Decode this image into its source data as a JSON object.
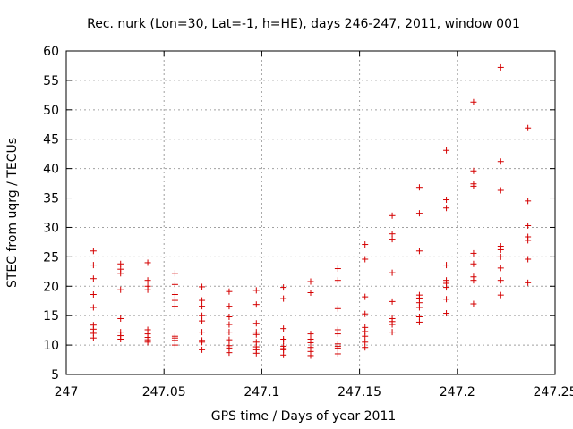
{
  "chart_data": {
    "type": "scatter",
    "title": "Rec. nurk (Lon=30, Lat=-1, h=HE), days 246-247, 2011, window 001",
    "xlabel": "GPS time / Days of year 2011",
    "ylabel": "STEC from uqrg / TECUs",
    "xlim": [
      247,
      247.25
    ],
    "ylim": [
      5,
      60
    ],
    "xticks": [
      247,
      247.05,
      247.1,
      247.15,
      247.2,
      247.25
    ],
    "xtick_labels": [
      "247",
      "247.05",
      "247.1",
      "247.15",
      "247.2",
      "247.25"
    ],
    "yticks": [
      5,
      10,
      15,
      20,
      25,
      30,
      35,
      40,
      45,
      50,
      55,
      60
    ],
    "ytick_labels": [
      "5",
      "10",
      "15",
      "20",
      "25",
      "30",
      "35",
      "40",
      "45",
      "50",
      "55",
      "60"
    ],
    "grid": true,
    "marker": "+",
    "color": "#d40000",
    "points": [
      [
        247.0139,
        26.0
      ],
      [
        247.0139,
        23.6
      ],
      [
        247.0139,
        21.3
      ],
      [
        247.0139,
        18.6
      ],
      [
        247.0139,
        16.4
      ],
      [
        247.0139,
        13.4
      ],
      [
        247.0139,
        12.7
      ],
      [
        247.0139,
        12.0
      ],
      [
        247.0139,
        11.2
      ],
      [
        247.0278,
        23.8
      ],
      [
        247.0278,
        22.9
      ],
      [
        247.0278,
        22.2
      ],
      [
        247.0278,
        19.4
      ],
      [
        247.0278,
        14.5
      ],
      [
        247.0278,
        12.2
      ],
      [
        247.0278,
        11.6
      ],
      [
        247.0278,
        11.0
      ],
      [
        247.0417,
        24.0
      ],
      [
        247.0417,
        21.0
      ],
      [
        247.0417,
        20.0
      ],
      [
        247.0417,
        19.4
      ],
      [
        247.0417,
        12.6
      ],
      [
        247.0417,
        11.9
      ],
      [
        247.0417,
        11.3
      ],
      [
        247.0417,
        10.9
      ],
      [
        247.0417,
        10.5
      ],
      [
        247.0556,
        22.2
      ],
      [
        247.0556,
        20.3
      ],
      [
        247.0556,
        18.6
      ],
      [
        247.0556,
        17.6
      ],
      [
        247.0556,
        16.6
      ],
      [
        247.0556,
        11.5
      ],
      [
        247.0556,
        11.2
      ],
      [
        247.0556,
        10.8
      ],
      [
        247.0556,
        10.0
      ],
      [
        247.0694,
        19.9
      ],
      [
        247.0694,
        17.6
      ],
      [
        247.0694,
        16.6
      ],
      [
        247.0694,
        15.0
      ],
      [
        247.0694,
        14.1
      ],
      [
        247.0694,
        12.2
      ],
      [
        247.0694,
        10.8
      ],
      [
        247.0694,
        10.5
      ],
      [
        247.0694,
        9.2
      ],
      [
        247.0833,
        19.1
      ],
      [
        247.0833,
        16.6
      ],
      [
        247.0833,
        14.8
      ],
      [
        247.0833,
        13.5
      ],
      [
        247.0833,
        12.2
      ],
      [
        247.0833,
        10.9
      ],
      [
        247.0833,
        9.9
      ],
      [
        247.0833,
        9.5
      ],
      [
        247.0833,
        8.7
      ],
      [
        247.0972,
        19.3
      ],
      [
        247.0972,
        16.9
      ],
      [
        247.0972,
        13.7
      ],
      [
        247.0972,
        12.2
      ],
      [
        247.0972,
        11.8
      ],
      [
        247.0972,
        10.5
      ],
      [
        247.0972,
        9.7
      ],
      [
        247.0972,
        9.2
      ],
      [
        247.0972,
        8.6
      ],
      [
        247.1111,
        19.8
      ],
      [
        247.1111,
        17.9
      ],
      [
        247.1111,
        12.8
      ],
      [
        247.1111,
        11.0
      ],
      [
        247.1111,
        10.7
      ],
      [
        247.1111,
        9.8
      ],
      [
        247.1111,
        9.4
      ],
      [
        247.1111,
        9.2
      ],
      [
        247.1111,
        8.3
      ],
      [
        247.125,
        20.8
      ],
      [
        247.125,
        18.9
      ],
      [
        247.125,
        11.9
      ],
      [
        247.125,
        11.0
      ],
      [
        247.125,
        10.4
      ],
      [
        247.125,
        9.6
      ],
      [
        247.125,
        8.9
      ],
      [
        247.125,
        8.2
      ],
      [
        247.1389,
        23.0
      ],
      [
        247.1389,
        21.0
      ],
      [
        247.1389,
        16.2
      ],
      [
        247.1389,
        12.6
      ],
      [
        247.1389,
        11.9
      ],
      [
        247.1389,
        10.2
      ],
      [
        247.1389,
        9.8
      ],
      [
        247.1389,
        9.5
      ],
      [
        247.1389,
        8.5
      ],
      [
        247.1528,
        27.1
      ],
      [
        247.1528,
        24.6
      ],
      [
        247.1528,
        18.2
      ],
      [
        247.1528,
        15.3
      ],
      [
        247.1528,
        13.0
      ],
      [
        247.1528,
        12.3
      ],
      [
        247.1528,
        11.5
      ],
      [
        247.1528,
        10.5
      ],
      [
        247.1528,
        9.6
      ],
      [
        247.1667,
        32.0
      ],
      [
        247.1667,
        28.9
      ],
      [
        247.1667,
        28.0
      ],
      [
        247.1667,
        22.3
      ],
      [
        247.1667,
        17.4
      ],
      [
        247.1667,
        14.5
      ],
      [
        247.1667,
        14.0
      ],
      [
        247.1667,
        13.5
      ],
      [
        247.1667,
        12.2
      ],
      [
        247.1806,
        36.8
      ],
      [
        247.1806,
        32.4
      ],
      [
        247.1806,
        26.0
      ],
      [
        247.1806,
        18.5
      ],
      [
        247.1806,
        18.0
      ],
      [
        247.1806,
        17.2
      ],
      [
        247.1806,
        16.4
      ],
      [
        247.1806,
        14.8
      ],
      [
        247.1806,
        13.9
      ],
      [
        247.1944,
        43.1
      ],
      [
        247.1944,
        34.7
      ],
      [
        247.1944,
        33.3
      ],
      [
        247.1944,
        23.6
      ],
      [
        247.1944,
        21.0
      ],
      [
        247.1944,
        20.5
      ],
      [
        247.1944,
        19.8
      ],
      [
        247.1944,
        17.8
      ],
      [
        247.1944,
        15.4
      ],
      [
        247.2083,
        51.3
      ],
      [
        247.2083,
        39.6
      ],
      [
        247.2083,
        37.4
      ],
      [
        247.2083,
        37.0
      ],
      [
        247.2083,
        25.6
      ],
      [
        247.2083,
        23.8
      ],
      [
        247.2083,
        21.6
      ],
      [
        247.2083,
        21.0
      ],
      [
        247.2083,
        17.0
      ],
      [
        247.2222,
        57.2
      ],
      [
        247.2222,
        41.2
      ],
      [
        247.2222,
        36.3
      ],
      [
        247.2222,
        26.8
      ],
      [
        247.2222,
        26.2
      ],
      [
        247.2222,
        25.0
      ],
      [
        247.2222,
        23.1
      ],
      [
        247.2222,
        21.0
      ],
      [
        247.2222,
        18.5
      ],
      [
        247.2361,
        46.9
      ],
      [
        247.2361,
        34.5
      ],
      [
        247.2361,
        30.3
      ],
      [
        247.2361,
        28.4
      ],
      [
        247.2361,
        27.8
      ],
      [
        247.2361,
        24.6
      ],
      [
        247.2361,
        20.6
      ]
    ]
  }
}
